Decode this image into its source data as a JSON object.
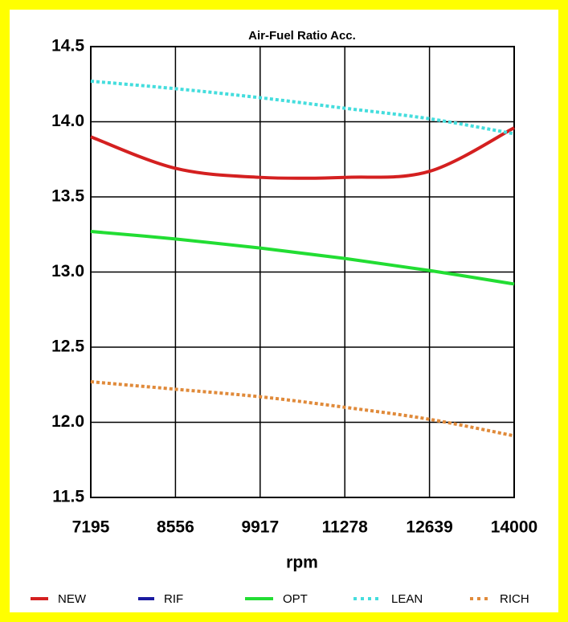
{
  "chart_data": {
    "type": "line",
    "title": "Air-Fuel Ratio Acc.",
    "x_label": "rpm",
    "x": [
      7195,
      8556,
      9917,
      11278,
      12639,
      14000
    ],
    "xlim": [
      7195,
      14000
    ],
    "xticks": [
      7195,
      8556,
      9917,
      11278,
      12639,
      14000
    ],
    "ylim": [
      11.5,
      14.5
    ],
    "yticks": [
      11.5,
      {
        "value": 12,
        "label": "12.0"
      },
      12.5,
      {
        "value": 13,
        "label": "13.0"
      },
      13.5,
      {
        "value": 14,
        "label": "14.0"
      },
      14.5
    ],
    "grid": true,
    "legend": "bottom",
    "series": [
      {
        "name": "NEW",
        "color": "#d42020",
        "style": "solid",
        "values": [
          13.9,
          13.69,
          13.63,
          13.63,
          13.67,
          13.96
        ]
      },
      {
        "name": "RIF",
        "color": "#1a1aa0",
        "style": "solid",
        "values": [
          null,
          null,
          null,
          null,
          null,
          null
        ]
      },
      {
        "name": "OPT",
        "color": "#22dd33",
        "style": "solid",
        "values": [
          13.27,
          13.22,
          13.16,
          13.09,
          13.01,
          12.92
        ]
      },
      {
        "name": "LEAN",
        "color": "#44dddd",
        "style": "dotted",
        "values": [
          14.27,
          14.22,
          14.16,
          14.09,
          14.02,
          13.92
        ]
      },
      {
        "name": "RICH",
        "color": "#e08a3a",
        "style": "dotted",
        "values": [
          12.27,
          12.22,
          12.17,
          12.1,
          12.02,
          11.91
        ]
      }
    ]
  }
}
